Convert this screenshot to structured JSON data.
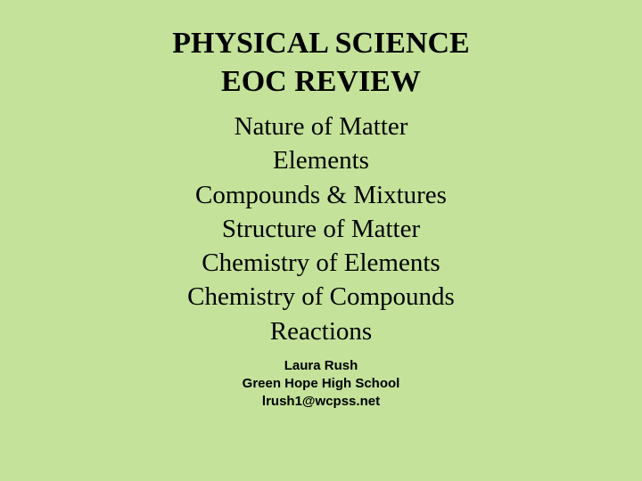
{
  "slide": {
    "background_color": "#c4e29a",
    "text_color": "#000000",
    "title": {
      "line1": "PHYSICAL SCIENCE",
      "line2": "EOC REVIEW",
      "font_family": "Times New Roman",
      "font_weight": "bold",
      "font_size_pt": 26
    },
    "topics": {
      "items": [
        "Nature of Matter",
        "Elements",
        "Compounds & Mixtures",
        "Structure of Matter",
        "Chemistry of Elements",
        "Chemistry of Compounds",
        "Reactions"
      ],
      "font_family": "Times New Roman",
      "font_size_pt": 22
    },
    "author": {
      "name": "Laura Rush",
      "school": "Green Hope High School",
      "email": "lrush1@wcpss.net",
      "font_family": "Comic Sans MS",
      "font_size_pt": 11,
      "font_weight": "bold"
    }
  }
}
